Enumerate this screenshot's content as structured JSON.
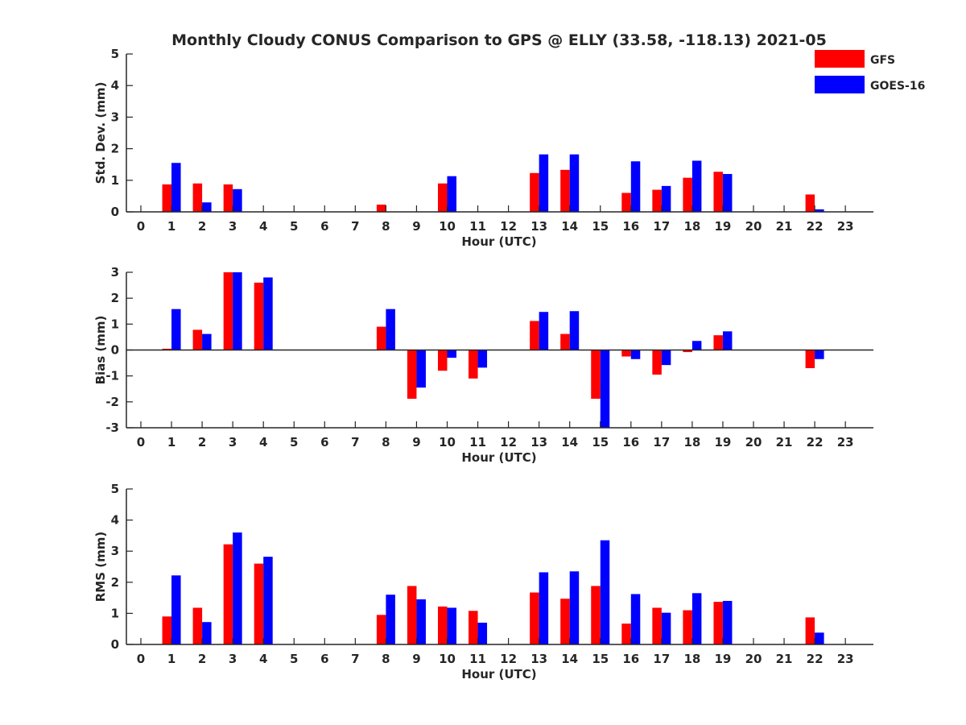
{
  "title": "Monthly Cloudy CONUS Comparison to GPS @ ELLY (33.58, -118.13) 2021-05",
  "legend": [
    {
      "name": "GFS",
      "color": "#ff0000"
    },
    {
      "name": "GOES-16",
      "color": "#0000ff"
    }
  ],
  "chart_data": [
    {
      "type": "bar",
      "xlabel": "Hour (UTC)",
      "ylabel": "Std. Dev. (mm)",
      "ylim": [
        0,
        5
      ],
      "yticks": [
        0,
        1,
        2,
        3,
        4,
        5
      ],
      "categories": [
        "0",
        "1",
        "2",
        "3",
        "4",
        "5",
        "6",
        "7",
        "8",
        "9",
        "10",
        "11",
        "12",
        "13",
        "14",
        "15",
        "16",
        "17",
        "18",
        "19",
        "20",
        "21",
        "22",
        "23"
      ],
      "series": [
        {
          "name": "GFS",
          "color": "#ff0000",
          "values": [
            null,
            0.87,
            0.9,
            0.87,
            null,
            null,
            null,
            null,
            0.23,
            null,
            0.9,
            null,
            null,
            1.23,
            1.33,
            null,
            0.6,
            0.7,
            1.08,
            1.27,
            null,
            null,
            0.55,
            null
          ]
        },
        {
          "name": "GOES-16",
          "color": "#0000ff",
          "values": [
            null,
            1.55,
            0.3,
            0.72,
            null,
            null,
            null,
            null,
            null,
            null,
            1.13,
            null,
            null,
            1.82,
            1.82,
            null,
            1.6,
            0.82,
            1.62,
            1.2,
            null,
            null,
            0.08,
            null
          ]
        }
      ]
    },
    {
      "type": "bar",
      "xlabel": "Hour (UTC)",
      "ylabel": "Bias (mm)",
      "ylim": [
        -3,
        3
      ],
      "yticks": [
        -3,
        -2,
        -1,
        0,
        1,
        2,
        3
      ],
      "categories": [
        "0",
        "1",
        "2",
        "3",
        "4",
        "5",
        "6",
        "7",
        "8",
        "9",
        "10",
        "11",
        "12",
        "13",
        "14",
        "15",
        "16",
        "17",
        "18",
        "19",
        "20",
        "21",
        "22",
        "23"
      ],
      "series": [
        {
          "name": "GFS",
          "color": "#ff0000",
          "values": [
            null,
            0.05,
            0.78,
            3.0,
            2.6,
            null,
            null,
            null,
            0.9,
            -1.88,
            -0.8,
            -1.1,
            null,
            1.12,
            0.62,
            -1.88,
            -0.25,
            -0.95,
            -0.08,
            0.57,
            null,
            null,
            -0.7,
            null
          ]
        },
        {
          "name": "GOES-16",
          "color": "#0000ff",
          "values": [
            null,
            1.58,
            0.62,
            3.0,
            2.8,
            null,
            null,
            null,
            1.58,
            -1.45,
            -0.3,
            -0.68,
            null,
            1.47,
            1.5,
            -3.0,
            -0.35,
            -0.58,
            0.35,
            0.72,
            null,
            null,
            -0.35,
            null
          ]
        }
      ]
    },
    {
      "type": "bar",
      "xlabel": "Hour (UTC)",
      "ylabel": "RMS (mm)",
      "ylim": [
        0,
        5
      ],
      "yticks": [
        0,
        1,
        2,
        3,
        4,
        5
      ],
      "categories": [
        "0",
        "1",
        "2",
        "3",
        "4",
        "5",
        "6",
        "7",
        "8",
        "9",
        "10",
        "11",
        "12",
        "13",
        "14",
        "15",
        "16",
        "17",
        "18",
        "19",
        "20",
        "21",
        "22",
        "23"
      ],
      "series": [
        {
          "name": "GFS",
          "color": "#ff0000",
          "values": [
            null,
            0.9,
            1.18,
            3.22,
            2.6,
            null,
            null,
            null,
            0.95,
            1.88,
            1.22,
            1.08,
            null,
            1.67,
            1.47,
            1.88,
            0.67,
            1.18,
            1.1,
            1.37,
            null,
            null,
            0.87,
            null
          ]
        },
        {
          "name": "GOES-16",
          "color": "#0000ff",
          "values": [
            null,
            2.22,
            0.72,
            3.6,
            2.82,
            null,
            null,
            null,
            1.6,
            1.45,
            1.18,
            0.7,
            null,
            2.32,
            2.35,
            3.35,
            1.62,
            1.02,
            1.65,
            1.4,
            null,
            null,
            0.38,
            null
          ]
        }
      ]
    }
  ]
}
